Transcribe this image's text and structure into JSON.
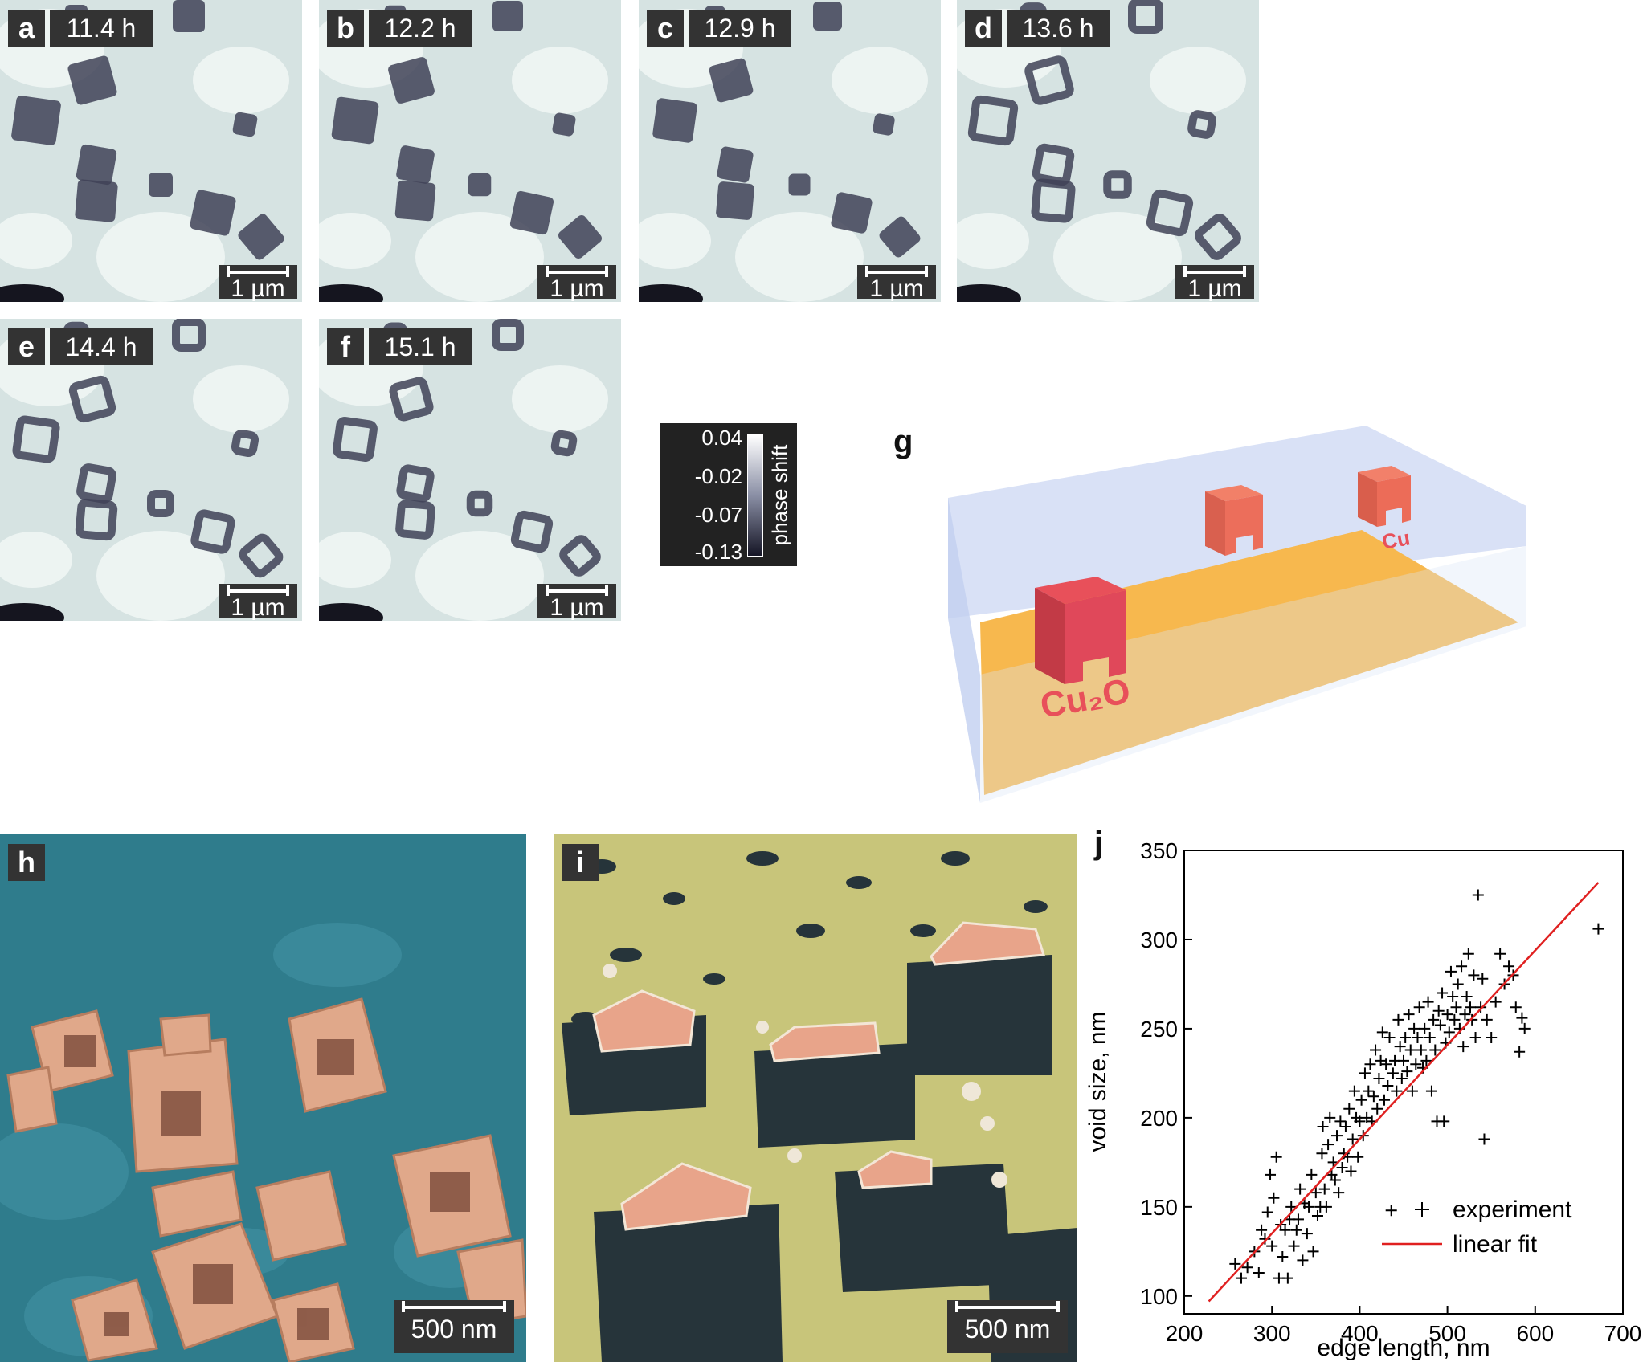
{
  "panels": {
    "a": {
      "letter": "a",
      "time": "11.4 h",
      "scale": "1 µm"
    },
    "b": {
      "letter": "b",
      "time": "12.2 h",
      "scale": "1 µm"
    },
    "c": {
      "letter": "c",
      "time": "12.9 h",
      "scale": "1 µm"
    },
    "d": {
      "letter": "d",
      "time": "13.6 h",
      "scale": "1 µm"
    },
    "e": {
      "letter": "e",
      "time": "14.4 h",
      "scale": "1 µm"
    },
    "f": {
      "letter": "f",
      "time": "15.1 h",
      "scale": "1 µm"
    },
    "g": {
      "letter": "g",
      "label_cu2o": "Cu₂O",
      "label_cu": "Cu"
    },
    "h": {
      "letter": "h",
      "scale": "500 nm"
    },
    "i": {
      "letter": "i",
      "scale": "500 nm"
    },
    "j": {
      "letter": "j"
    }
  },
  "colorbar": {
    "ticks": [
      "0.04",
      "-0.02",
      "-0.07",
      "-0.13"
    ],
    "label": "phase shift"
  },
  "colors": {
    "phase_bg": "#d6e3e2",
    "phase_dark": "#3f4257",
    "sem_bg_h": "#2f7c8c",
    "sem_particle": "#e0a88a",
    "sem_bg_i": "#c8c57a",
    "substrate": "#f7b84e",
    "liquid_box": "#cfdaf4",
    "cube": "#e8505a",
    "fit_line": "#e02020"
  },
  "chart_data": {
    "type": "scatter",
    "xlabel": "edge length, nm",
    "ylabel": "void size, nm",
    "xlim": [
      200,
      700
    ],
    "ylim": [
      90,
      350
    ],
    "xticks": [
      200,
      300,
      400,
      500,
      600,
      700
    ],
    "yticks": [
      100,
      150,
      200,
      250,
      300,
      350
    ],
    "legend_position": "bottom-right",
    "series": [
      {
        "name": "experiment",
        "marker": "plus",
        "points": [
          [
            258,
            118
          ],
          [
            265,
            110
          ],
          [
            272,
            116
          ],
          [
            280,
            125
          ],
          [
            285,
            113
          ],
          [
            288,
            137
          ],
          [
            292,
            132
          ],
          [
            295,
            147
          ],
          [
            298,
            168
          ],
          [
            300,
            128
          ],
          [
            302,
            155
          ],
          [
            305,
            178
          ],
          [
            308,
            110
          ],
          [
            310,
            140
          ],
          [
            312,
            122
          ],
          [
            315,
            137
          ],
          [
            318,
            110
          ],
          [
            320,
            143
          ],
          [
            322,
            150
          ],
          [
            325,
            128
          ],
          [
            328,
            137
          ],
          [
            330,
            143
          ],
          [
            332,
            160
          ],
          [
            335,
            120
          ],
          [
            337,
            152
          ],
          [
            340,
            135
          ],
          [
            342,
            150
          ],
          [
            345,
            168
          ],
          [
            347,
            125
          ],
          [
            350,
            158
          ],
          [
            352,
            145
          ],
          [
            355,
            150
          ],
          [
            357,
            180
          ],
          [
            358,
            195
          ],
          [
            360,
            160
          ],
          [
            362,
            150
          ],
          [
            364,
            185
          ],
          [
            366,
            200
          ],
          [
            368,
            168
          ],
          [
            370,
            175
          ],
          [
            372,
            165
          ],
          [
            374,
            190
          ],
          [
            376,
            158
          ],
          [
            378,
            198
          ],
          [
            380,
            172
          ],
          [
            382,
            180
          ],
          [
            384,
            195
          ],
          [
            386,
            178
          ],
          [
            388,
            205
          ],
          [
            390,
            170
          ],
          [
            392,
            188
          ],
          [
            394,
            215
          ],
          [
            396,
            200
          ],
          [
            398,
            178
          ],
          [
            400,
            198
          ],
          [
            402,
            210
          ],
          [
            404,
            190
          ],
          [
            406,
            225
          ],
          [
            408,
            200
          ],
          [
            410,
            215
          ],
          [
            412,
            230
          ],
          [
            414,
            198
          ],
          [
            416,
            212
          ],
          [
            418,
            238
          ],
          [
            420,
            205
          ],
          [
            422,
            222
          ],
          [
            424,
            232
          ],
          [
            426,
            248
          ],
          [
            428,
            210
          ],
          [
            430,
            230
          ],
          [
            432,
            218
          ],
          [
            434,
            245
          ],
          [
            436,
            148
          ],
          [
            438,
            225
          ],
          [
            440,
            232
          ],
          [
            442,
            215
          ],
          [
            444,
            255
          ],
          [
            446,
            240
          ],
          [
            448,
            222
          ],
          [
            450,
            232
          ],
          [
            452,
            245
          ],
          [
            454,
            226
          ],
          [
            456,
            258
          ],
          [
            458,
            238
          ],
          [
            460,
            215
          ],
          [
            462,
            250
          ],
          [
            464,
            230
          ],
          [
            466,
            245
          ],
          [
            468,
            262
          ],
          [
            470,
            238
          ],
          [
            472,
            228
          ],
          [
            474,
            250
          ],
          [
            476,
            232
          ],
          [
            478,
            265
          ],
          [
            480,
            245
          ],
          [
            482,
            215
          ],
          [
            484,
            255
          ],
          [
            486,
            238
          ],
          [
            488,
            198
          ],
          [
            490,
            260
          ],
          [
            492,
            252
          ],
          [
            494,
            270
          ],
          [
            496,
            198
          ],
          [
            498,
            242
          ],
          [
            500,
            258
          ],
          [
            502,
            248
          ],
          [
            504,
            282
          ],
          [
            506,
            268
          ],
          [
            508,
            255
          ],
          [
            510,
            262
          ],
          [
            512,
            275
          ],
          [
            514,
            250
          ],
          [
            516,
            285
          ],
          [
            518,
            240
          ],
          [
            520,
            258
          ],
          [
            522,
            268
          ],
          [
            524,
            292
          ],
          [
            526,
            262
          ],
          [
            528,
            255
          ],
          [
            530,
            280
          ],
          [
            532,
            245
          ],
          [
            535,
            325
          ],
          [
            538,
            262
          ],
          [
            540,
            278
          ],
          [
            542,
            188
          ],
          [
            545,
            255
          ],
          [
            550,
            245
          ],
          [
            555,
            265
          ],
          [
            560,
            292
          ],
          [
            565,
            275
          ],
          [
            570,
            285
          ],
          [
            575,
            280
          ],
          [
            578,
            262
          ],
          [
            582,
            237
          ],
          [
            585,
            256
          ],
          [
            588,
            250
          ],
          [
            672,
            306
          ]
        ]
      },
      {
        "name": "linear fit",
        "type": "line",
        "points": [
          [
            228,
            97
          ],
          [
            672,
            332
          ]
        ]
      }
    ]
  }
}
